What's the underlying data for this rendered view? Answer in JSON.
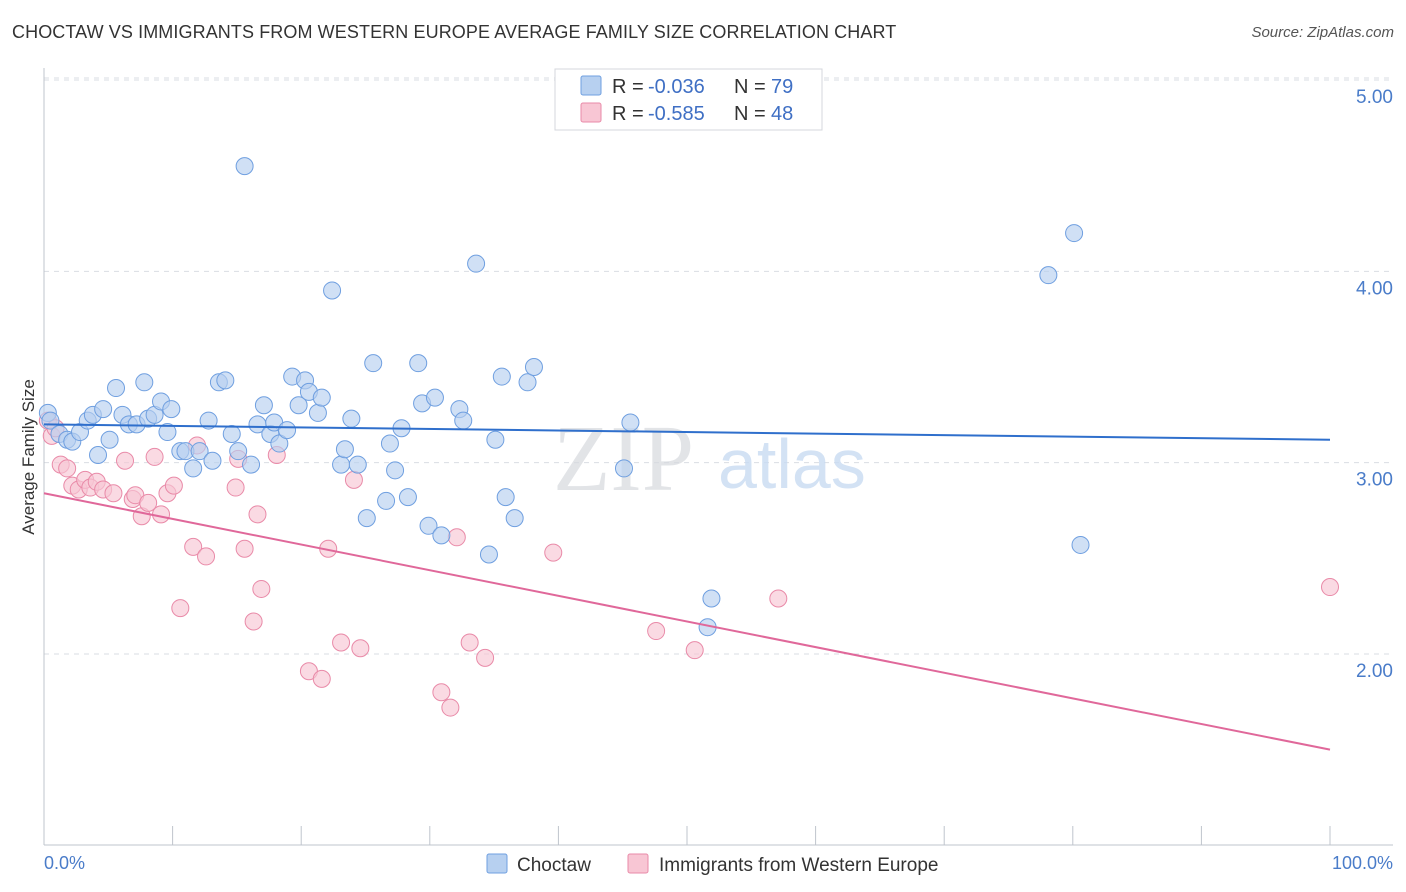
{
  "title": "CHOCTAW VS IMMIGRANTS FROM WESTERN EUROPE AVERAGE FAMILY SIZE CORRELATION CHART",
  "source": "Source: ZipAtlas.com",
  "watermark": {
    "zip": "ZIP",
    "atlas": "atlas"
  },
  "colors": {
    "blue_fill": "#b7d0f0",
    "blue_stroke": "#6f9fe0",
    "blue_line": "#2f6fcc",
    "pink_fill": "#f8c6d4",
    "pink_stroke": "#e98aa8",
    "pink_line": "#e0689a",
    "grid": "#d9dde3",
    "tick_text": "#4a7cc9"
  },
  "legend": {
    "row1": {
      "r_label": "R =",
      "r_value": "-0.036",
      "n_label": "N =",
      "n_value": "79"
    },
    "row2": {
      "r_label": "R =",
      "r_value": "-0.585",
      "n_label": "N =",
      "n_value": "48"
    }
  },
  "bottom_legend": {
    "series1": "Choctaw",
    "series2": "Immigrants from Western Europe"
  },
  "chart_data": {
    "type": "scatter",
    "title": "CHOCTAW VS IMMIGRANTS FROM WESTERN EUROPE AVERAGE FAMILY SIZE CORRELATION CHART",
    "xlabel": "",
    "ylabel": "Average Family Size",
    "xlim": [
      0,
      100
    ],
    "ylim": [
      1.05,
      5.1
    ],
    "x_tick_labels": [
      "0.0%",
      "100.0%"
    ],
    "y_ticks": [
      2.0,
      3.0,
      4.0,
      5.0
    ],
    "y_tick_labels": [
      "2.00",
      "3.00",
      "4.00",
      "5.00"
    ],
    "grid": true,
    "legend_position": "top-center",
    "series": [
      {
        "name": "Choctaw",
        "r": -0.036,
        "n": 79,
        "trend": {
          "x": [
            0,
            100
          ],
          "y": [
            3.2,
            3.12
          ]
        },
        "points": [
          [
            0.3,
            3.26
          ],
          [
            0.5,
            3.22
          ],
          [
            1.2,
            3.15
          ],
          [
            1.8,
            3.12
          ],
          [
            2.2,
            3.11
          ],
          [
            2.8,
            3.16
          ],
          [
            3.4,
            3.22
          ],
          [
            3.8,
            3.25
          ],
          [
            4.2,
            3.04
          ],
          [
            4.6,
            3.28
          ],
          [
            5.1,
            3.12
          ],
          [
            5.6,
            3.39
          ],
          [
            6.1,
            3.25
          ],
          [
            6.6,
            3.2
          ],
          [
            7.2,
            3.2
          ],
          [
            7.8,
            3.42
          ],
          [
            8.1,
            3.23
          ],
          [
            8.6,
            3.25
          ],
          [
            9.1,
            3.32
          ],
          [
            9.6,
            3.16
          ],
          [
            9.9,
            3.28
          ],
          [
            10.6,
            3.06
          ],
          [
            11.0,
            3.06
          ],
          [
            11.6,
            2.97
          ],
          [
            12.1,
            3.06
          ],
          [
            12.8,
            3.22
          ],
          [
            13.1,
            3.01
          ],
          [
            13.6,
            3.42
          ],
          [
            14.1,
            3.43
          ],
          [
            14.6,
            3.15
          ],
          [
            15.1,
            3.06
          ],
          [
            15.6,
            4.55
          ],
          [
            16.1,
            2.99
          ],
          [
            16.6,
            3.2
          ],
          [
            17.1,
            3.3
          ],
          [
            17.6,
            3.15
          ],
          [
            17.9,
            3.21
          ],
          [
            18.3,
            3.1
          ],
          [
            18.9,
            3.17
          ],
          [
            19.3,
            3.45
          ],
          [
            19.8,
            3.3
          ],
          [
            20.3,
            3.43
          ],
          [
            20.6,
            3.37
          ],
          [
            21.3,
            3.26
          ],
          [
            21.6,
            3.34
          ],
          [
            22.4,
            3.9
          ],
          [
            23.1,
            2.99
          ],
          [
            23.4,
            3.07
          ],
          [
            23.9,
            3.23
          ],
          [
            24.4,
            2.99
          ],
          [
            25.1,
            2.71
          ],
          [
            25.6,
            3.52
          ],
          [
            26.6,
            2.8
          ],
          [
            26.9,
            3.1
          ],
          [
            27.3,
            2.96
          ],
          [
            27.8,
            3.18
          ],
          [
            28.3,
            2.82
          ],
          [
            29.1,
            3.52
          ],
          [
            29.4,
            3.31
          ],
          [
            29.9,
            2.67
          ],
          [
            30.4,
            3.34
          ],
          [
            30.9,
            2.62
          ],
          [
            32.3,
            3.28
          ],
          [
            32.6,
            3.22
          ],
          [
            33.6,
            4.04
          ],
          [
            34.6,
            2.52
          ],
          [
            35.1,
            3.12
          ],
          [
            35.6,
            3.45
          ],
          [
            35.9,
            2.82
          ],
          [
            36.6,
            2.71
          ],
          [
            37.6,
            3.42
          ],
          [
            38.1,
            3.5
          ],
          [
            45.1,
            2.97
          ],
          [
            45.6,
            3.21
          ],
          [
            51.6,
            2.14
          ],
          [
            51.9,
            2.29
          ],
          [
            78.1,
            3.98
          ],
          [
            80.1,
            4.2
          ],
          [
            80.6,
            2.57
          ]
        ]
      },
      {
        "name": "Immigrants from Western Europe",
        "r": -0.585,
        "n": 48,
        "trend": {
          "x": [
            0,
            100
          ],
          "y": [
            2.84,
            1.5
          ]
        },
        "points": [
          [
            0.3,
            3.22
          ],
          [
            0.6,
            3.14
          ],
          [
            1.3,
            2.99
          ],
          [
            1.8,
            2.97
          ],
          [
            2.2,
            2.88
          ],
          [
            2.7,
            2.86
          ],
          [
            3.2,
            2.91
          ],
          [
            3.6,
            2.87
          ],
          [
            4.1,
            2.9
          ],
          [
            4.6,
            2.86
          ],
          [
            5.4,
            2.84
          ],
          [
            6.3,
            3.01
          ],
          [
            6.9,
            2.81
          ],
          [
            7.1,
            2.83
          ],
          [
            7.6,
            2.72
          ],
          [
            8.1,
            2.79
          ],
          [
            8.6,
            3.03
          ],
          [
            9.1,
            2.73
          ],
          [
            9.6,
            2.84
          ],
          [
            10.1,
            2.88
          ],
          [
            10.6,
            2.24
          ],
          [
            11.6,
            2.56
          ],
          [
            11.9,
            3.09
          ],
          [
            12.6,
            2.51
          ],
          [
            14.9,
            2.87
          ],
          [
            15.1,
            3.02
          ],
          [
            15.6,
            2.55
          ],
          [
            16.3,
            2.17
          ],
          [
            16.6,
            2.73
          ],
          [
            16.9,
            2.34
          ],
          [
            18.1,
            3.04
          ],
          [
            20.6,
            1.91
          ],
          [
            21.6,
            1.87
          ],
          [
            22.1,
            2.55
          ],
          [
            23.1,
            2.06
          ],
          [
            24.1,
            2.91
          ],
          [
            24.6,
            2.03
          ],
          [
            30.9,
            1.8
          ],
          [
            31.6,
            1.72
          ],
          [
            32.1,
            2.61
          ],
          [
            33.1,
            2.06
          ],
          [
            34.3,
            1.98
          ],
          [
            39.6,
            2.53
          ],
          [
            47.6,
            2.12
          ],
          [
            50.6,
            2.02
          ],
          [
            57.1,
            2.29
          ],
          [
            100.0,
            2.35
          ],
          [
            0.9,
            3.18
          ]
        ]
      }
    ]
  }
}
